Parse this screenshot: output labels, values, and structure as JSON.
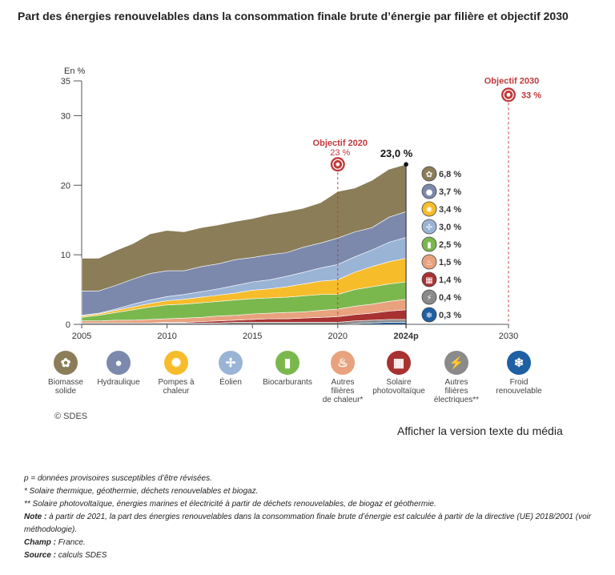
{
  "title": "Part des énergies renouvelables dans la consommation finale brute d’énergie par filière et objectif 2030",
  "chart_data": {
    "type": "area",
    "stacked": true,
    "y_unit_label": "En %",
    "ylim": [
      0,
      35
    ],
    "y_ticks": [
      "0",
      "10",
      "20",
      "30",
      "35"
    ],
    "x": [
      2005,
      2006,
      2007,
      2008,
      2009,
      2010,
      2011,
      2012,
      2013,
      2014,
      2015,
      2016,
      2017,
      2018,
      2019,
      2020,
      2021,
      2022,
      2023,
      2024
    ],
    "xlim": [
      2005,
      2030
    ],
    "x_tick_labels": [
      {
        "x": 2005,
        "label": "2005"
      },
      {
        "x": 2010,
        "label": "2010"
      },
      {
        "x": 2015,
        "label": "2015"
      },
      {
        "x": 2020,
        "label": "2020"
      },
      {
        "x": 2024,
        "label": "2024p"
      },
      {
        "x": 2030,
        "label": "2030"
      }
    ],
    "series": [
      {
        "name": "Froid renouvelable",
        "color": "#1f5fa3",
        "values": [
          0,
          0,
          0,
          0,
          0,
          0,
          0,
          0,
          0,
          0,
          0,
          0,
          0,
          0,
          0,
          0,
          0.1,
          0.2,
          0.3,
          0.3
        ]
      },
      {
        "name": "Autres filières électriques**",
        "color": "#8a8a8a",
        "values": [
          0.2,
          0.2,
          0.2,
          0.2,
          0.2,
          0.2,
          0.2,
          0.2,
          0.2,
          0.3,
          0.3,
          0.3,
          0.3,
          0.3,
          0.3,
          0.3,
          0.4,
          0.4,
          0.4,
          0.4
        ]
      },
      {
        "name": "Solaire photovoltaïque",
        "color": "#a83232",
        "values": [
          0,
          0,
          0,
          0,
          0,
          0.1,
          0.1,
          0.2,
          0.3,
          0.3,
          0.4,
          0.5,
          0.5,
          0.6,
          0.7,
          0.8,
          0.9,
          1.0,
          1.2,
          1.4
        ]
      },
      {
        "name": "Autres filières de chaleur*",
        "color": "#e8a27e",
        "values": [
          0.3,
          0.3,
          0.4,
          0.4,
          0.5,
          0.5,
          0.6,
          0.6,
          0.7,
          0.7,
          0.8,
          0.8,
          0.9,
          0.9,
          1.0,
          1.1,
          1.2,
          1.3,
          1.4,
          1.5
        ]
      },
      {
        "name": "Biocarburants",
        "color": "#7ab84e",
        "values": [
          0.5,
          0.8,
          1.1,
          1.5,
          1.8,
          2.0,
          2.0,
          2.1,
          2.1,
          2.2,
          2.2,
          2.2,
          2.2,
          2.3,
          2.3,
          2.1,
          2.4,
          2.5,
          2.5,
          2.5
        ]
      },
      {
        "name": "Pompes à chaleur",
        "color": "#f6bc2a",
        "values": [
          0.2,
          0.2,
          0.3,
          0.4,
          0.5,
          0.6,
          0.7,
          0.8,
          0.9,
          1.0,
          1.2,
          1.3,
          1.5,
          1.7,
          1.9,
          2.1,
          2.5,
          2.9,
          3.2,
          3.4
        ]
      },
      {
        "name": "Éolien",
        "color": "#9ab4d6",
        "values": [
          0.1,
          0.1,
          0.2,
          0.4,
          0.5,
          0.6,
          0.7,
          0.8,
          0.9,
          1.1,
          1.2,
          1.3,
          1.5,
          1.7,
          1.9,
          2.2,
          2.2,
          2.4,
          2.8,
          3.0
        ]
      },
      {
        "name": "Hydraulique",
        "color": "#7c89ad",
        "values": [
          3.5,
          3.2,
          3.4,
          3.6,
          3.8,
          3.7,
          3.4,
          3.6,
          3.6,
          3.7,
          3.5,
          3.6,
          3.4,
          3.6,
          3.6,
          3.8,
          3.6,
          3.2,
          3.6,
          3.7
        ]
      },
      {
        "name": "Biomasse solide",
        "color": "#8a7d58",
        "values": [
          4.7,
          4.7,
          5.0,
          5.1,
          5.7,
          5.8,
          5.6,
          5.6,
          5.6,
          5.5,
          5.6,
          5.8,
          5.9,
          5.6,
          5.8,
          6.7,
          6.3,
          6.8,
          6.9,
          6.8
        ]
      }
    ],
    "end_labels": [
      "6,8 %",
      "3,7 %",
      "3,4 %",
      "3,0 %",
      "2,5 %",
      "1,5 %",
      "1,4 %",
      "0,4 %",
      "0,3 %"
    ],
    "end_total": {
      "x": 2024,
      "value": 23.0,
      "label": "23,0 %"
    },
    "targets": [
      {
        "year": 2020,
        "value": 23,
        "title": "Objectif 2020",
        "value_label": "23 %"
      },
      {
        "year": 2030,
        "value": 33,
        "title": "Objectif 2030",
        "value_label": "33 %"
      }
    ]
  },
  "legend": [
    {
      "icon": "biomass-icon",
      "color": "#8a7d58",
      "label_lines": [
        "Biomasse",
        "solide"
      ]
    },
    {
      "icon": "water-drops-icon",
      "color": "#7c89ad",
      "label_lines": [
        "Hydraulique"
      ]
    },
    {
      "icon": "heat-pump-icon",
      "color": "#f6bc2a",
      "label_lines": [
        "Pompes à",
        "chaleur"
      ]
    },
    {
      "icon": "wind-turbine-icon",
      "color": "#9ab4d6",
      "label_lines": [
        "Éolien"
      ]
    },
    {
      "icon": "biofuel-icon",
      "color": "#7ab84e",
      "label_lines": [
        "Biocarburants"
      ]
    },
    {
      "icon": "flame-icon",
      "color": "#e8a27e",
      "label_lines": [
        "Autres",
        "filières",
        "de chaleur*"
      ]
    },
    {
      "icon": "solar-panel-icon",
      "color": "#a83232",
      "label_lines": [
        "Solaire",
        "photovoltaïque"
      ]
    },
    {
      "icon": "lightning-icon",
      "color": "#8a8a8a",
      "label_lines": [
        "Autres",
        "filières",
        "électriques**"
      ]
    },
    {
      "icon": "snowflake-icon",
      "color": "#1f5fa3",
      "label_lines": [
        "Froid",
        "renouvelable"
      ]
    }
  ],
  "copyright": "© SDES",
  "media_link": "Afficher la version texte du média",
  "notes": {
    "provisional": "p = données provisoires susceptibles d’être révisées.",
    "footnote1": "* Solaire thermique, géothermie, déchets renouvelables et biogaz.",
    "footnote2": "** Solaire photovoltaïque, énergies marines et électricité à partir de déchets renouvelables, de biogaz et géothermie.",
    "note_label": "Note :",
    "note_text": " à partir de 2021, la part des énergies renouvelables dans la consommation finale brute d’énergie est calculée à partir de la directive (UE) 2018/2001 (voir méthodologie).",
    "champ_label": "Champ :",
    "champ_text": " France.",
    "source_label": "Source :",
    "source_text": " calculs SDES"
  }
}
